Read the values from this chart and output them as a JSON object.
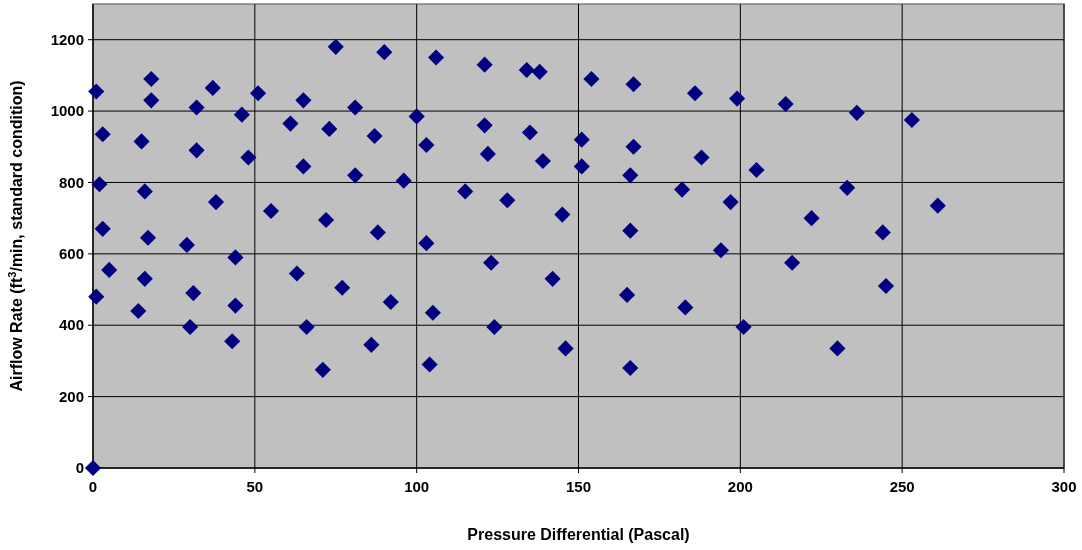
{
  "chart_data": {
    "type": "scatter",
    "xlabel": "Pressure Differential (Pascal)",
    "ylabel": "Airflow Rate (ft$^{3}$/min, standard condition)",
    "xlim": [
      0,
      300
    ],
    "xticks": [
      0,
      50,
      100,
      150,
      200,
      250,
      300
    ],
    "ylim": [
      0,
      1300
    ],
    "yticks": [
      0,
      200,
      400,
      600,
      800,
      1000,
      1200
    ],
    "grid": true,
    "marker": "diamond",
    "series": [
      {
        "color": "#000080",
        "x": [
          0,
          1,
          18,
          18,
          37,
          32,
          46,
          51,
          65,
          81,
          75,
          90,
          3,
          15,
          32,
          48,
          61,
          73,
          87,
          65,
          81,
          96,
          2,
          16,
          38,
          55,
          72,
          88,
          3,
          17,
          29,
          44,
          5,
          16,
          63,
          77,
          92,
          1,
          14,
          31,
          44,
          30,
          43,
          66,
          86,
          71,
          106,
          121,
          134,
          138,
          154,
          167,
          186,
          100,
          121,
          135,
          151,
          167,
          188,
          103,
          122,
          139,
          151,
          166,
          115,
          128,
          145,
          166,
          182,
          197,
          194,
          103,
          123,
          142,
          165,
          183,
          105,
          124,
          146,
          104,
          166,
          199,
          214,
          236,
          253,
          205,
          233,
          261,
          222,
          244,
          216,
          245,
          201,
          230
        ],
        "values": [
          0,
          1055,
          1090,
          1030,
          1065,
          1010,
          990,
          1050,
          1030,
          1010,
          1180,
          1165,
          935,
          915,
          890,
          870,
          965,
          950,
          930,
          845,
          820,
          805,
          795,
          775,
          745,
          720,
          695,
          660,
          670,
          645,
          625,
          590,
          555,
          530,
          545,
          505,
          465,
          480,
          440,
          490,
          455,
          395,
          355,
          395,
          345,
          275,
          1150,
          1130,
          1115,
          1110,
          1090,
          1075,
          1050,
          985,
          960,
          940,
          920,
          900,
          870,
          905,
          880,
          860,
          845,
          820,
          775,
          750,
          710,
          665,
          780,
          745,
          610,
          630,
          575,
          530,
          485,
          450,
          435,
          395,
          335,
          290,
          280,
          1035,
          1020,
          995,
          975,
          835,
          785,
          735,
          700,
          660,
          575,
          510,
          395,
          335
        ]
      }
    ]
  }
}
